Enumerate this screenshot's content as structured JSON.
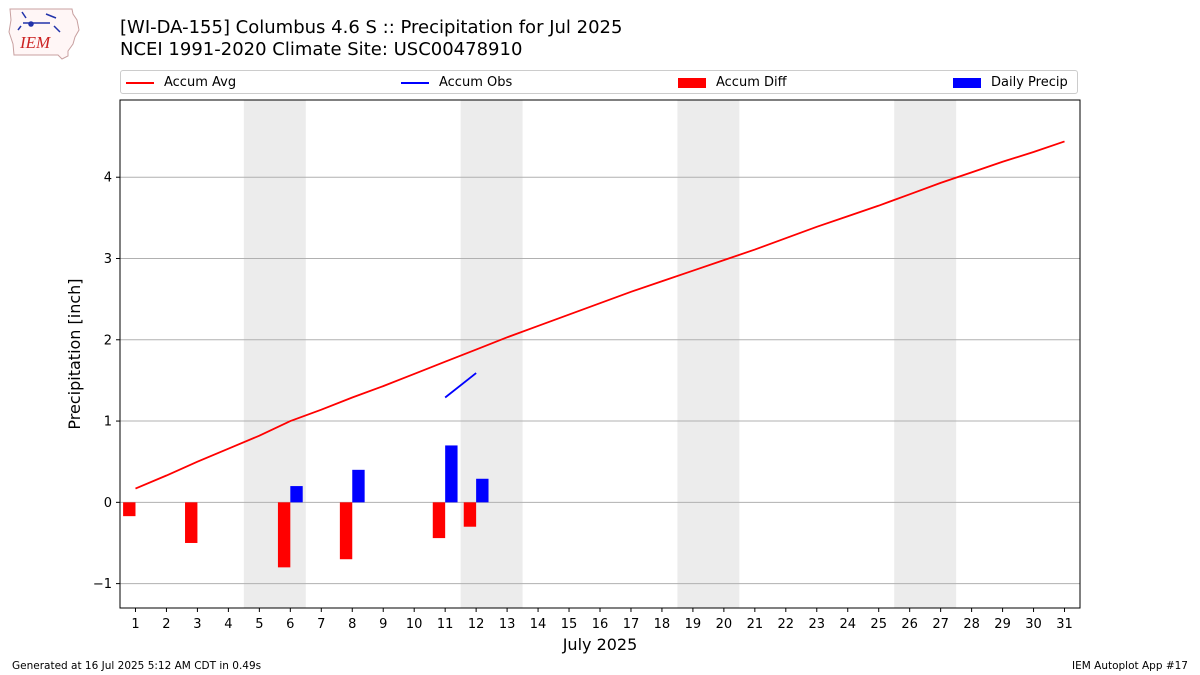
{
  "header": {
    "logo_text": "IEM",
    "title_line1": "[WI-DA-155] Columbus 4.6 S :: Precipitation for Jul 2025",
    "title_line2": "NCEI 1991-2020 Climate Site: USC00478910"
  },
  "footer": {
    "generated": "Generated at 16 Jul 2025 5:12 AM CDT in 0.49s",
    "app": "IEM Autoplot App #17"
  },
  "chart_data": {
    "type": "bar",
    "xlabel": "July 2025",
    "ylabel": "Precipitation [inch]",
    "xlim": [
      0.5,
      31.5
    ],
    "ylim": [
      -1.3,
      4.95
    ],
    "yticks": [
      -1,
      0,
      1,
      2,
      3,
      4
    ],
    "ytick_labels": [
      "−1",
      "0",
      "1",
      "2",
      "3",
      "4"
    ],
    "days": [
      1,
      2,
      3,
      4,
      5,
      6,
      7,
      8,
      9,
      10,
      11,
      12,
      13,
      14,
      15,
      16,
      17,
      18,
      19,
      20,
      21,
      22,
      23,
      24,
      25,
      26,
      27,
      28,
      29,
      30,
      31
    ],
    "grid": "horizontal",
    "legend_placement": "top (above plot)",
    "weekend_shading": [
      [
        4.5,
        6.5
      ],
      [
        11.5,
        13.5
      ],
      [
        18.5,
        20.5
      ],
      [
        25.5,
        27.5
      ]
    ],
    "colors": {
      "accum_avg": "#ff0000",
      "accum_obs": "#0000ff",
      "accum_diff": "#ff0000",
      "daily_precip": "#0000ff",
      "weekend": "#ececec",
      "grid": "#b0b0b0"
    },
    "series": [
      {
        "name": "Accum Avg",
        "kind": "line",
        "x": [
          1,
          2,
          3,
          4,
          5,
          6,
          7,
          8,
          9,
          10,
          11,
          12,
          13,
          14,
          15,
          16,
          17,
          18,
          19,
          20,
          21,
          22,
          23,
          24,
          25,
          26,
          27,
          28,
          29,
          30,
          31
        ],
        "values": [
          0.17,
          0.33,
          0.5,
          0.66,
          0.82,
          1.0,
          1.14,
          1.29,
          1.43,
          1.58,
          1.73,
          1.88,
          2.03,
          2.17,
          2.31,
          2.45,
          2.59,
          2.72,
          2.85,
          2.98,
          3.11,
          3.25,
          3.39,
          3.52,
          3.65,
          3.79,
          3.93,
          4.06,
          4.19,
          4.31,
          4.44
        ]
      },
      {
        "name": "Accum Obs",
        "kind": "line",
        "x": [
          11,
          12
        ],
        "values": [
          1.29,
          1.59
        ]
      },
      {
        "name": "Accum Diff",
        "kind": "bar",
        "x": [
          1,
          3,
          6,
          8,
          11,
          12
        ],
        "values": [
          -0.17,
          -0.5,
          -0.8,
          -0.7,
          -0.44,
          -0.3
        ]
      },
      {
        "name": "Daily Precip",
        "kind": "bar",
        "x": [
          6,
          8,
          11,
          12
        ],
        "values": [
          0.2,
          0.4,
          0.7,
          0.29
        ]
      }
    ]
  }
}
